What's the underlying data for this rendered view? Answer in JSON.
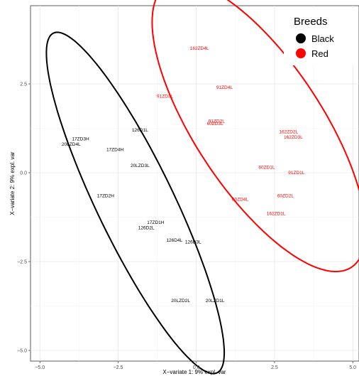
{
  "chart_data": {
    "type": "scatter",
    "xlabel": "X−variate 1: 9% expl. var",
    "ylabel": "X−variate 2: 9% expl. var",
    "xlim": [
      -5.3,
      5.2
    ],
    "ylim": [
      -5.3,
      4.7
    ],
    "x_ticks": [
      {
        "value": -5.0,
        "label": "−5.0"
      },
      {
        "value": -2.5,
        "label": "−2.5"
      },
      {
        "value": 0.0,
        "label": "0.0"
      },
      {
        "value": 2.5,
        "label": "2.5"
      },
      {
        "value": 5.0,
        "label": "5.0"
      }
    ],
    "y_ticks": [
      {
        "value": 2.5,
        "label": "2.5"
      },
      {
        "value": 0.0,
        "label": "0.0"
      },
      {
        "value": -2.5,
        "label": "−2.5"
      },
      {
        "value": -5.0,
        "label": "−5.0"
      }
    ],
    "grid": true,
    "legend": {
      "title": "Breeds",
      "position": "top-right",
      "entries": [
        {
          "label": "Black",
          "color": "#000000"
        },
        {
          "label": "Red",
          "color": "#ff0000"
        }
      ]
    },
    "series": [
      {
        "name": "Black",
        "color": "#000000",
        "points": [
          {
            "label": "126D1L",
            "x": -1.8,
            "y": 1.2
          },
          {
            "label": "17ZD3H",
            "x": -3.7,
            "y": 0.95
          },
          {
            "label": "20LZD4L",
            "x": -4.0,
            "y": 0.8
          },
          {
            "label": "17ZD4H",
            "x": -2.6,
            "y": 0.65
          },
          {
            "label": "20LZD3L",
            "x": -1.8,
            "y": 0.2
          },
          {
            "label": "17ZD2H",
            "x": -2.9,
            "y": -0.65
          },
          {
            "label": "17ZD1H",
            "x": -1.3,
            "y": -1.4
          },
          {
            "label": "126D2L",
            "x": -1.6,
            "y": -1.55
          },
          {
            "label": "126D4L",
            "x": -0.7,
            "y": -1.9
          },
          {
            "label": "126D3L",
            "x": -0.1,
            "y": -1.95
          },
          {
            "label": "20LZD2L",
            "x": -0.5,
            "y": -3.6
          },
          {
            "label": "20LZD1L",
            "x": 0.6,
            "y": -3.6
          }
        ],
        "ellipse": {
          "cx": -1.95,
          "cy": -0.85,
          "rx": 5.45,
          "ry": 1.2,
          "angle_deg": -61
        }
      },
      {
        "name": "Red",
        "color": "#ff0000",
        "points": [
          {
            "label": "162ZD4L",
            "x": 0.1,
            "y": 3.5
          },
          {
            "label": "91ZD4L",
            "x": 0.9,
            "y": 2.4
          },
          {
            "label": "91ZD3L",
            "x": -1.0,
            "y": 2.15
          },
          {
            "label": "91ZD2L",
            "x": 0.65,
            "y": 1.45
          },
          {
            "label": "60ZD3L",
            "x": 0.6,
            "y": 1.38
          },
          {
            "label": "162ZD2L",
            "x": 2.95,
            "y": 1.15
          },
          {
            "label": "162ZD3L",
            "x": 3.1,
            "y": 1.0
          },
          {
            "label": "60ZD1L",
            "x": 2.25,
            "y": 0.15
          },
          {
            "label": "91ZD1L",
            "x": 3.2,
            "y": 0.0
          },
          {
            "label": "60ZD4L",
            "x": 1.4,
            "y": -0.75
          },
          {
            "label": "60ZD2L",
            "x": 2.85,
            "y": -0.65
          },
          {
            "label": "162ZD1L",
            "x": 2.55,
            "y": -1.15
          }
        ],
        "ellipse": {
          "cx": 2.0,
          "cy": 1.3,
          "rx": 4.95,
          "ry": 1.95,
          "angle_deg": -52
        }
      }
    ]
  }
}
